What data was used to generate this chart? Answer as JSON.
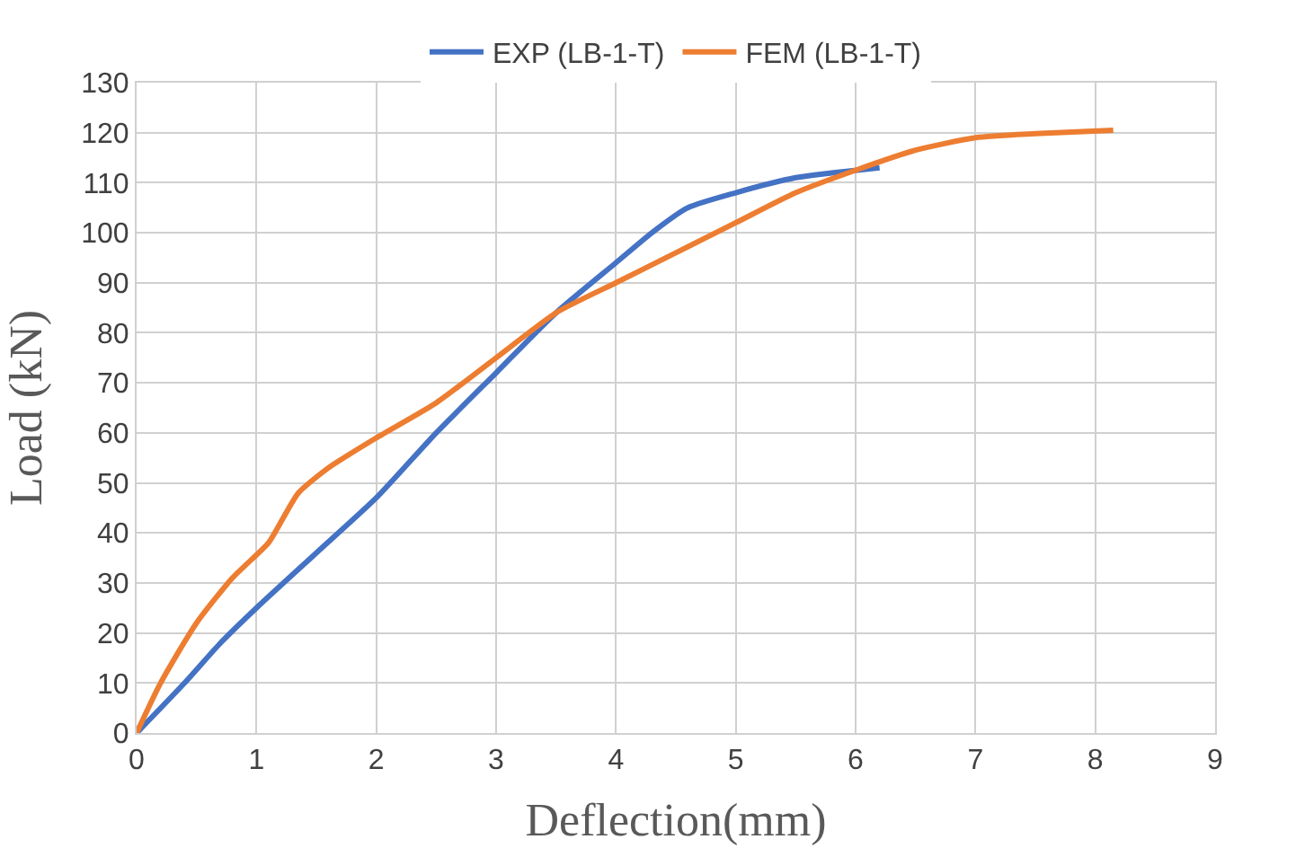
{
  "chart_data": {
    "type": "line",
    "xlabel": "Deflection(mm)",
    "ylabel": "Load (kN)",
    "xlim": [
      0,
      9
    ],
    "xticks": [
      0,
      1,
      2,
      3,
      4,
      5,
      6,
      7,
      8,
      9
    ],
    "ylim": [
      0,
      130
    ],
    "yticks": [
      0,
      10,
      20,
      30,
      40,
      50,
      60,
      70,
      80,
      90,
      100,
      110,
      120,
      130
    ],
    "grid": true,
    "legend": "top",
    "marker": "none",
    "line_style": "solid",
    "series": [
      {
        "name": "EXP (LB-1-T)",
        "color": "#4472c4",
        "x": [
          0,
          0.4,
          0.7,
          1,
          1.5,
          2,
          2.5,
          3,
          3.5,
          4,
          4.3,
          4.6,
          5,
          5.5,
          6.2
        ],
        "values": [
          0,
          10,
          18,
          25,
          36,
          47,
          60,
          72,
          84,
          94,
          100,
          105,
          108,
          111,
          113
        ]
      },
      {
        "name": "FEM (LB-1-T)",
        "color": "#ed7d31",
        "x": [
          0,
          0.2,
          0.5,
          0.8,
          1.1,
          1.2,
          1.35,
          1.6,
          2,
          2.5,
          3,
          3.5,
          4,
          4.5,
          5,
          5.5,
          6,
          6.5,
          7,
          7.5,
          8.15
        ],
        "values": [
          0,
          10,
          22,
          31,
          38,
          42,
          48,
          53,
          59,
          66,
          75,
          84,
          90,
          96,
          102,
          108,
          112.5,
          116.5,
          119,
          119.8,
          120.5
        ]
      }
    ]
  }
}
